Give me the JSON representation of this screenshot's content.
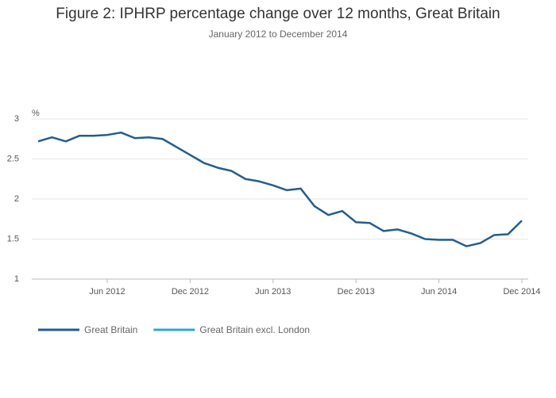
{
  "chart_data": {
    "type": "line",
    "title": "Figure 2: IPHRP percentage change over 12 months, Great Britain",
    "subtitle": "January 2012 to December 2014",
    "y_label": "%",
    "x": [
      "2012-01",
      "2012-02",
      "2012-03",
      "2012-04",
      "2012-05",
      "2012-06",
      "2012-07",
      "2012-08",
      "2012-09",
      "2012-10",
      "2012-11",
      "2012-12",
      "2013-01",
      "2013-02",
      "2013-03",
      "2013-04",
      "2013-05",
      "2013-06",
      "2013-07",
      "2013-08",
      "2013-09",
      "2013-10",
      "2013-11",
      "2013-12",
      "2014-01",
      "2014-02",
      "2014-03",
      "2014-04",
      "2014-05",
      "2014-06",
      "2014-07",
      "2014-08",
      "2014-09",
      "2014-10",
      "2014-11",
      "2014-12"
    ],
    "xticks": [
      {
        "value": "2012-06",
        "label": "Jun 2012"
      },
      {
        "value": "2012-12",
        "label": "Dec 2012"
      },
      {
        "value": "2013-06",
        "label": "Jun 2013"
      },
      {
        "value": "2013-12",
        "label": "Dec 2013"
      },
      {
        "value": "2014-06",
        "label": "Jun 2014"
      },
      {
        "value": "2014-12",
        "label": "Dec 2014"
      }
    ],
    "series": [
      {
        "name": "Great Britain",
        "color": "#245d8d",
        "values": [
          2.72,
          2.77,
          2.72,
          2.79,
          2.79,
          2.8,
          2.83,
          2.76,
          2.77,
          2.75,
          2.65,
          2.55,
          2.45,
          2.39,
          2.35,
          2.25,
          2.22,
          2.17,
          2.11,
          2.13,
          1.91,
          1.8,
          1.85,
          1.71,
          1.7,
          1.6,
          1.62,
          1.57,
          1.5,
          1.49,
          1.49,
          1.41,
          1.45,
          1.55,
          1.56,
          1.73
        ]
      },
      {
        "name": "Great Britain excl. London",
        "color": "#31a8c8",
        "values": [
          null,
          null,
          null,
          null,
          null,
          null,
          null,
          null,
          null,
          null,
          null,
          null,
          null,
          null,
          null,
          null,
          null,
          null,
          null,
          null,
          null,
          null,
          null,
          null,
          null,
          null,
          null,
          null,
          null,
          null,
          null,
          null,
          null,
          null,
          null,
          null
        ]
      }
    ],
    "ylim": [
      1,
      3
    ],
    "yticks": [
      1,
      1.5,
      2,
      2.5,
      3
    ],
    "grid": true,
    "legend": "bottom"
  }
}
